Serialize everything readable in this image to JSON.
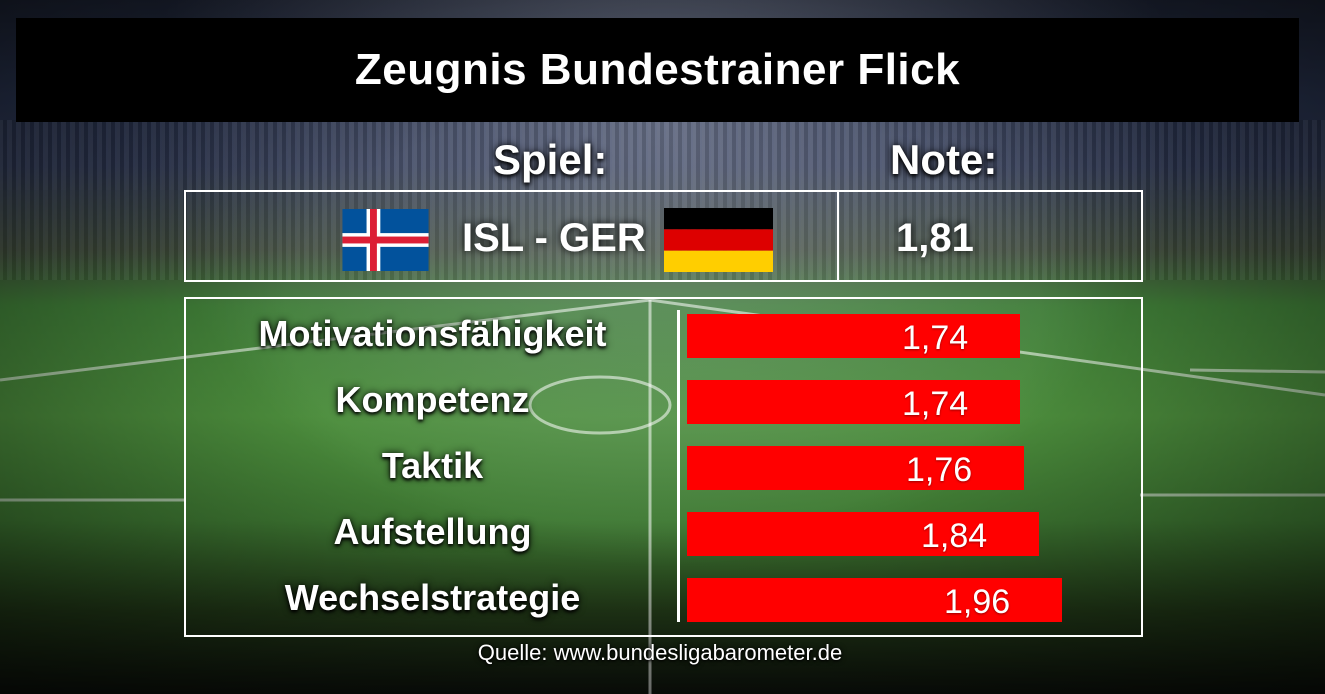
{
  "title": "Zeugnis Bundestrainer Flick",
  "header": {
    "match_label": "Spiel:",
    "grade_label": "Note:"
  },
  "match": {
    "text": "ISL - GER",
    "home_flag": "iceland-flag",
    "away_flag": "germany-flag",
    "grade": "1,81"
  },
  "chart_data": {
    "type": "bar",
    "orientation": "horizontal",
    "categories": [
      "Motivationsfähigkeit",
      "Kompetenz",
      "Taktik",
      "Aufstellung",
      "Wechselstrategie"
    ],
    "values": [
      1.74,
      1.74,
      1.76,
      1.84,
      1.96
    ],
    "value_labels": [
      "1,74",
      "1,74",
      "1,76",
      "1,84",
      "1,96"
    ],
    "bar_color": "#ff0000",
    "grid": false
  },
  "source": "Quelle: www.bundesligabarometer.de",
  "colors": {
    "accent": "#ff0000",
    "title_band": "#000000",
    "text": "#ffffff"
  }
}
